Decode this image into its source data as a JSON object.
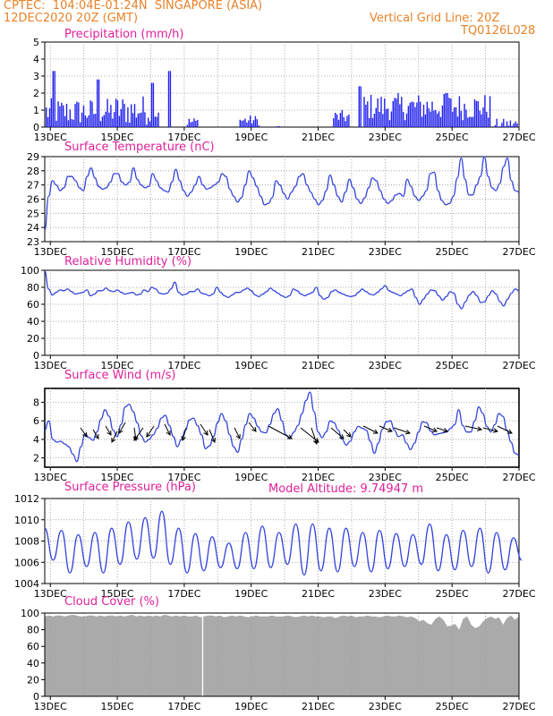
{
  "header": {
    "line1_left": "CPTEC:  104:04E-01:24N  SINGAPORE (ASIA)",
    "line2_left": "12DEC2020 20Z (GMT)",
    "line1_right": "Vertical Grid Line: 20Z",
    "line2_right": "TQ0126L028",
    "model_altitude": "Model Altitude: 9.74947 m"
  },
  "colors": {
    "header": "#e8822a",
    "title": "#e0209a",
    "line": "#3344dd",
    "bar": "#2222ee",
    "arrow": "#000000",
    "cloud": "#aaaaaa",
    "grid": "#999999"
  },
  "chart_data": [
    {
      "type": "bar",
      "title": "Precipitation (mm/h)",
      "ylim": [
        0,
        5
      ],
      "yticks": [
        "0",
        "1",
        "2",
        "3",
        "4",
        "5"
      ],
      "xticks": [
        "13DEC",
        "15DEC",
        "17DEC",
        "19DEC",
        "21DEC",
        "23DEC",
        "25DEC",
        "27DEC"
      ],
      "grid": "dotted",
      "segments": [
        {
          "from": 0.0,
          "to": 2.0,
          "level": 0.9,
          "var": 0.8
        },
        {
          "from": 2.0,
          "to": 3.4,
          "level": 1.0,
          "var": 0.9
        },
        {
          "from": 4.2,
          "to": 4.6,
          "level": 0.3,
          "var": 0.3
        },
        {
          "from": 5.8,
          "to": 6.4,
          "level": 0.4,
          "var": 0.3
        },
        {
          "from": 6.9,
          "to": 7.0,
          "level": 0.0,
          "var": 0.2
        },
        {
          "from": 8.6,
          "to": 9.1,
          "level": 0.6,
          "var": 0.4
        },
        {
          "from": 9.5,
          "to": 13.3,
          "level": 1.2,
          "var": 0.8
        },
        {
          "from": 13.4,
          "to": 15.2,
          "level": 0.2,
          "var": 0.3
        }
      ],
      "peaks": [
        [
          0.25,
          3.3
        ],
        [
          1.6,
          2.8
        ],
        [
          3.7,
          3.3
        ],
        [
          3.2,
          2.6
        ],
        [
          9.4,
          2.4
        ],
        [
          12.0,
          2.0
        ]
      ]
    },
    {
      "type": "line",
      "title": "Surface Temperature (nC)",
      "ylim": [
        23,
        29
      ],
      "yticks": [
        "23",
        "24",
        "25",
        "26",
        "27",
        "28",
        "29"
      ],
      "xticks": [
        "13DEC",
        "15DEC",
        "17DEC",
        "19DEC",
        "21DEC",
        "23DEC",
        "25DEC",
        "27DEC"
      ],
      "grid": "dotted",
      "x_start_day": 12.833,
      "x_end_day": 27.0,
      "values": [
        23.8,
        26.2,
        27.3,
        27.0,
        26.6,
        26.8,
        27.6,
        27.6,
        27.3,
        26.8,
        26.6,
        27.6,
        28.2,
        27.5,
        26.9,
        26.7,
        26.8,
        27.2,
        27.8,
        27.8,
        27.2,
        27.0,
        27.2,
        28.2,
        27.4,
        27.0,
        26.8,
        26.9,
        27.8,
        27.3,
        26.8,
        26.6,
        26.5,
        27.2,
        28.1,
        27.3,
        26.6,
        26.2,
        26.5,
        27.0,
        27.6,
        27.0,
        26.7,
        26.8,
        27.0,
        27.2,
        27.8,
        27.6,
        26.7,
        26.2,
        25.8,
        26.1,
        27.0,
        28.0,
        27.5,
        26.9,
        26.2,
        25.6,
        25.7,
        26.1,
        27.3,
        27.0,
        26.4,
        26.0,
        26.5,
        26.9,
        27.6,
        27.8,
        27.0,
        26.5,
        26.0,
        25.6,
        25.9,
        26.6,
        27.7,
        27.0,
        26.2,
        25.8,
        26.5,
        27.4,
        26.8,
        26.0,
        25.7,
        26.1,
        26.8,
        27.5,
        27.3,
        26.6,
        26.0,
        25.7,
        25.9,
        26.3,
        26.4,
        26.2,
        27.4,
        26.9,
        26.2,
        25.9,
        26.2,
        26.6,
        27.8,
        27.9,
        26.6,
        25.9,
        25.6,
        25.7,
        26.2,
        27.5,
        28.9,
        27.4,
        26.3,
        26.3,
        27.0,
        27.6,
        29.0,
        27.6,
        26.8,
        26.6,
        27.1,
        28.3,
        28.9,
        27.3,
        26.6,
        26.5
      ]
    },
    {
      "type": "line",
      "title": "Relative Humidity (%)",
      "ylim": [
        0,
        100
      ],
      "yticks": [
        "0",
        "20",
        "40",
        "60",
        "80",
        "100"
      ],
      "xticks": [
        "13DEC",
        "15DEC",
        "17DEC",
        "19DEC",
        "21DEC",
        "23DEC",
        "25DEC",
        "27DEC"
      ],
      "grid": "dotted",
      "x_start_day": 12.833,
      "x_end_day": 27.0,
      "values": [
        99,
        78,
        71,
        74,
        77,
        76,
        78,
        75,
        72,
        73,
        74,
        77,
        70,
        72,
        76,
        76,
        79,
        76,
        75,
        77,
        74,
        72,
        73,
        74,
        71,
        72,
        77,
        75,
        80,
        78,
        73,
        72,
        73,
        78,
        86,
        74,
        71,
        72,
        75,
        75,
        78,
        73,
        72,
        70,
        72,
        80,
        74,
        70,
        68,
        71,
        74,
        74,
        77,
        79,
        76,
        71,
        69,
        72,
        75,
        79,
        76,
        73,
        70,
        68,
        70,
        78,
        76,
        72,
        70,
        72,
        74,
        80,
        70,
        66,
        68,
        75,
        77,
        74,
        72,
        70,
        69,
        70,
        74,
        78,
        75,
        72,
        71,
        74,
        78,
        82,
        76,
        74,
        72,
        70,
        73,
        76,
        78,
        68,
        60,
        66,
        72,
        77,
        76,
        70,
        65,
        69,
        75,
        73,
        60,
        55,
        63,
        71,
        75,
        70,
        62,
        63,
        70,
        76,
        72,
        63,
        58,
        66,
        73,
        78,
        76
      ]
    },
    {
      "type": "line",
      "title": "Surface Wind (m/s)",
      "ylim": [
        1,
        9.5
      ],
      "yticks": [
        "2",
        "4",
        "6",
        "8"
      ],
      "xticks": [
        "13DEC",
        "15DEC",
        "17DEC",
        "19DEC",
        "21DEC",
        "23DEC",
        "25DEC",
        "27DEC"
      ],
      "grid": "dotted",
      "x_start_day": 12.833,
      "x_end_day": 27.0,
      "values": [
        5.0,
        6.0,
        4.0,
        3.7,
        3.8,
        3.5,
        3.2,
        2.4,
        1.6,
        3.2,
        4.6,
        4.2,
        3.9,
        4.8,
        6.2,
        7.2,
        6.5,
        5.0,
        4.3,
        5.6,
        7.5,
        7.8,
        7.0,
        5.8,
        4.4,
        3.7,
        4.0,
        4.5,
        5.2,
        6.3,
        6.6,
        5.5,
        4.3,
        3.2,
        4.0,
        5.0,
        6.1,
        6.3,
        5.5,
        4.5,
        3.0,
        3.3,
        4.3,
        5.8,
        6.8,
        6.0,
        4.5,
        3.2,
        2.6,
        4.0,
        5.6,
        6.8,
        6.3,
        5.4,
        4.8,
        4.7,
        5.6,
        6.8,
        7.3,
        6.0,
        4.5,
        4.1,
        4.8,
        5.5,
        6.8,
        8.2,
        9.1,
        7.0,
        4.8,
        4.2,
        4.8,
        6.0,
        5.8,
        5.0,
        4.0,
        3.4,
        3.8,
        4.8,
        5.4,
        5.2,
        5.0,
        3.8,
        2.5,
        3.6,
        5.1,
        5.9,
        6.0,
        5.0,
        4.3,
        4.5,
        3.6,
        2.9,
        3.6,
        4.8,
        5.9,
        5.8,
        4.9,
        4.5,
        4.6,
        4.7,
        4.8,
        5.2,
        5.6,
        7.2,
        5.5,
        4.8,
        4.8,
        6.0,
        7.5,
        6.8,
        5.4,
        4.8,
        5.6,
        6.8,
        6.5,
        5.0,
        3.7,
        2.5,
        2.3
      ]
    },
    {
      "type": "line",
      "title": "Surface Pressure (hPa)",
      "ylim": [
        1004,
        1012
      ],
      "yticks": [
        "1004",
        "1006",
        "1008",
        "1010",
        "1012"
      ],
      "xticks": [
        "13DEC",
        "15DEC",
        "17DEC",
        "19DEC",
        "21DEC",
        "23DEC",
        "25DEC",
        "27DEC"
      ],
      "grid": "dotted",
      "x_start_day": 12.833,
      "x_end_day": 27.0,
      "cycles": [
        [
          0.0,
          1009.2,
          1006.2
        ],
        [
          0.5,
          1009.0,
          1005.0
        ],
        [
          1.0,
          1008.6,
          1005.6
        ],
        [
          1.5,
          1008.8,
          1005.0
        ],
        [
          2.0,
          1009.2,
          1005.8
        ],
        [
          2.5,
          1009.8,
          1006.3
        ],
        [
          3.0,
          1010.2,
          1006.4
        ],
        [
          3.5,
          1010.8,
          1005.8
        ],
        [
          4.0,
          1009.2,
          1005.0
        ],
        [
          4.5,
          1008.7,
          1005.2
        ],
        [
          5.0,
          1008.4,
          1005.5
        ],
        [
          5.5,
          1007.8,
          1005.4
        ],
        [
          6.0,
          1008.8,
          1005.4
        ],
        [
          6.5,
          1009.4,
          1005.5
        ],
        [
          7.0,
          1008.8,
          1005.8
        ],
        [
          7.5,
          1009.6,
          1004.8
        ],
        [
          8.0,
          1009.6,
          1005.2
        ],
        [
          8.5,
          1009.2,
          1005.1
        ],
        [
          9.0,
          1009.2,
          1005.6
        ],
        [
          9.5,
          1008.8,
          1005.1
        ],
        [
          10.0,
          1009.0,
          1005.4
        ],
        [
          10.5,
          1008.7,
          1005.6
        ],
        [
          11.0,
          1008.6,
          1005.8
        ],
        [
          11.5,
          1009.6,
          1005.2
        ],
        [
          12.0,
          1008.6,
          1005.3
        ],
        [
          12.5,
          1009.0,
          1005.6
        ],
        [
          13.0,
          1009.2,
          1005.0
        ],
        [
          13.5,
          1008.8,
          1005.3
        ],
        [
          14.0,
          1008.3,
          1006.2
        ]
      ]
    },
    {
      "type": "area",
      "title": "Cloud Cover (%)",
      "ylim": [
        0,
        100
      ],
      "yticks": [
        "0",
        "20",
        "40",
        "60",
        "80",
        "100"
      ],
      "xticks": [
        "13DEC",
        "15DEC",
        "17DEC",
        "19DEC",
        "21DEC",
        "23DEC",
        "25DEC",
        "27DEC"
      ],
      "grid": "dotted",
      "x_start_day": 12.833,
      "x_end_day": 27.0,
      "values": [
        96,
        97,
        96,
        97,
        97,
        96,
        97,
        98,
        97,
        96,
        96,
        97,
        97,
        96,
        97,
        96,
        97,
        97,
        96,
        97,
        96,
        97,
        98,
        96,
        97,
        96,
        97,
        96,
        97,
        96,
        98,
        97,
        96,
        97,
        96,
        97,
        96,
        96,
        97,
        95,
        96,
        97,
        97,
        96,
        97,
        95,
        96,
        97,
        96,
        97,
        96,
        95,
        96,
        97,
        96,
        96,
        96,
        97,
        96,
        96,
        96,
        97,
        96,
        95,
        96,
        97,
        96,
        97,
        96,
        96,
        95,
        96,
        96,
        94,
        96,
        97,
        96,
        97,
        95,
        96,
        96,
        97,
        96,
        96,
        95,
        96,
        97,
        96,
        96,
        97,
        96,
        95,
        96,
        94,
        90,
        92,
        88,
        86,
        93,
        96,
        92,
        84,
        85,
        87,
        80,
        93,
        96,
        86,
        82,
        84,
        90,
        94,
        96,
        93,
        95,
        86,
        94,
        97,
        92,
        96
      ],
      "gap_at_day": 17.55
    }
  ]
}
